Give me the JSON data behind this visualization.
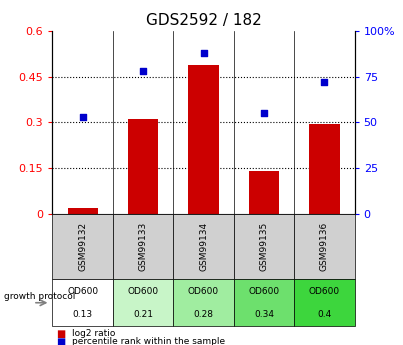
{
  "title": "GDS2592 / 182",
  "samples": [
    "GSM99132",
    "GSM99133",
    "GSM99134",
    "GSM99135",
    "GSM99136"
  ],
  "log2_ratio": [
    0.02,
    0.31,
    0.49,
    0.14,
    0.295
  ],
  "percentile_rank": [
    53,
    78,
    88,
    55,
    72
  ],
  "left_ylim": [
    0,
    0.6
  ],
  "right_ylim": [
    0,
    100
  ],
  "left_yticks": [
    0,
    0.15,
    0.3,
    0.45,
    0.6
  ],
  "right_yticks": [
    0,
    25,
    50,
    75,
    100
  ],
  "left_yticklabels": [
    "0",
    "0.15",
    "0.3",
    "0.45",
    "0.6"
  ],
  "right_yticklabels": [
    "0",
    "25",
    "50",
    "75",
    "100%"
  ],
  "bar_color": "#cc0000",
  "dot_color": "#0000cc",
  "growth_protocol_label": "growth protocol",
  "od_labels": [
    "OD600",
    "OD600",
    "OD600",
    "OD600",
    "OD600"
  ],
  "od_values": [
    "0.13",
    "0.21",
    "0.28",
    "0.34",
    "0.4"
  ],
  "gray_color": "#d0d0d0",
  "green_colors": [
    "#ffffff",
    "#c8f5c8",
    "#a0eda0",
    "#6de06d",
    "#3dd63d"
  ],
  "legend_red_label": "log2 ratio",
  "legend_blue_label": "percentile rank within the sample",
  "title_fontsize": 11,
  "tick_fontsize": 8,
  "background_color": "#ffffff"
}
